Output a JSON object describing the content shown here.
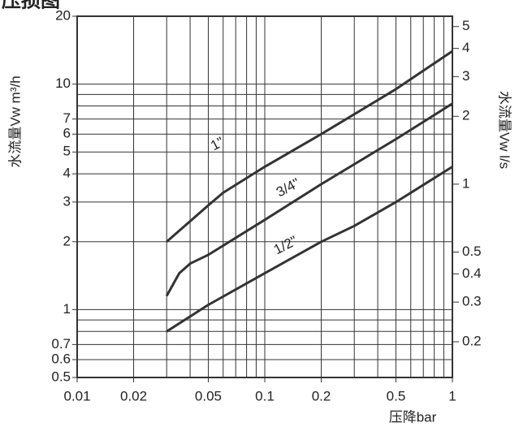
{
  "chart_data": {
    "type": "line",
    "title": "压损图",
    "x_label": "压降bar",
    "y_label": "水流量Vw m³/h",
    "y2_label": "水流量Vw l/s",
    "xscale": "log",
    "yscale": "log",
    "grid": true,
    "xlim": [
      0.01,
      1
    ],
    "xticks": [
      0.01,
      0.02,
      0.05,
      0.1,
      0.2,
      0.5,
      1
    ],
    "x_minor_ticks": [
      0.03,
      0.04,
      0.06,
      0.07,
      0.08,
      0.09,
      0.3,
      0.4,
      0.6,
      0.7,
      0.8,
      0.9
    ],
    "ylim": [
      0.5,
      20
    ],
    "yticks": [
      0.5,
      0.6,
      0.7,
      1,
      2,
      3,
      4,
      5,
      6,
      7,
      10,
      20
    ],
    "y_minor_ticks": [
      0.8,
      0.9,
      8,
      9
    ],
    "y2lim": [
      0.1389,
      5.556
    ],
    "y2ticks": [
      0.2,
      0.3,
      0.4,
      0.5,
      1,
      2,
      3,
      4,
      5
    ],
    "series": [
      {
        "name": "1\"",
        "color": "#333333",
        "x": [
          0.03,
          0.05,
          0.06,
          0.1,
          0.2,
          0.5,
          1
        ],
        "values": [
          2,
          2.9,
          3.3,
          4.3,
          6,
          9.5,
          14
        ]
      },
      {
        "name": "3/4\"",
        "color": "#333333",
        "x": [
          0.03,
          0.035,
          0.04,
          0.05,
          0.1,
          0.2,
          0.5,
          1
        ],
        "values": [
          1.15,
          1.45,
          1.6,
          1.75,
          2.5,
          3.6,
          5.7,
          8.2
        ]
      },
      {
        "name": "1/2\"",
        "color": "#333333",
        "x": [
          0.03,
          0.05,
          0.1,
          0.2,
          0.3,
          0.5,
          1
        ],
        "values": [
          0.8,
          1.05,
          1.45,
          2,
          2.35,
          3.0,
          4.3
        ]
      }
    ]
  }
}
